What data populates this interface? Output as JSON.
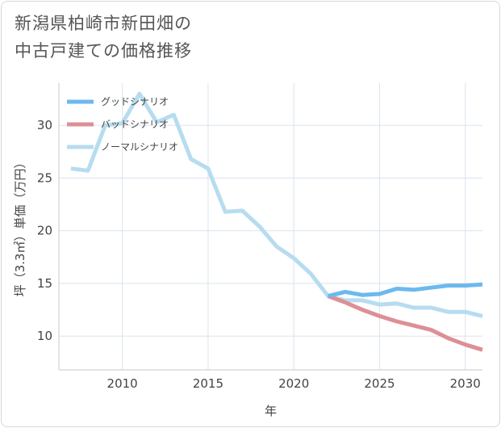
{
  "title": {
    "line1": "新潟県柏崎市新田畑の",
    "line2": "中古戸建ての価格推移"
  },
  "chart_data": {
    "type": "line",
    "xlabel": "年",
    "ylabel": "坪（3.3㎡）単価（万円）",
    "xlim": [
      2006.3,
      2031
    ],
    "ylim": [
      6.8,
      34
    ],
    "x_ticks": [
      2010,
      2015,
      2020,
      2025,
      2030
    ],
    "y_ticks": [
      10,
      15,
      20,
      25,
      30
    ],
    "grid": true,
    "legend_position": "top-left",
    "series": [
      {
        "name": "グッドシナリオ",
        "color": "#6cb9ee",
        "x": [
          2022,
          2023,
          2024,
          2025,
          2026,
          2027,
          2028,
          2029,
          2030,
          2031
        ],
        "y": [
          13.8,
          14.2,
          13.9,
          14.0,
          14.5,
          14.4,
          14.6,
          14.8,
          14.8,
          14.9
        ]
      },
      {
        "name": "バッドシナリオ",
        "color": "#de8f96",
        "x": [
          2022,
          2023,
          2024,
          2025,
          2026,
          2027,
          2028,
          2029,
          2030,
          2031
        ],
        "y": [
          13.8,
          13.2,
          12.5,
          11.9,
          11.4,
          11.0,
          10.6,
          9.8,
          9.2,
          8.7
        ]
      },
      {
        "name": "ノーマルシナリオ",
        "color": "#b7dcf0",
        "x": [
          2007,
          2008,
          2009,
          2010,
          2011,
          2012,
          2013,
          2014,
          2015,
          2016,
          2017,
          2018,
          2019,
          2020,
          2021,
          2022,
          2023,
          2024,
          2025,
          2026,
          2027,
          2028,
          2029,
          2030,
          2031
        ],
        "y": [
          25.9,
          25.7,
          30.0,
          30.2,
          33.0,
          30.3,
          31.0,
          26.8,
          25.9,
          21.8,
          21.9,
          20.4,
          18.5,
          17.4,
          15.9,
          13.8,
          13.4,
          13.4,
          13.0,
          13.1,
          12.7,
          12.7,
          12.3,
          12.3,
          11.9
        ]
      }
    ]
  }
}
